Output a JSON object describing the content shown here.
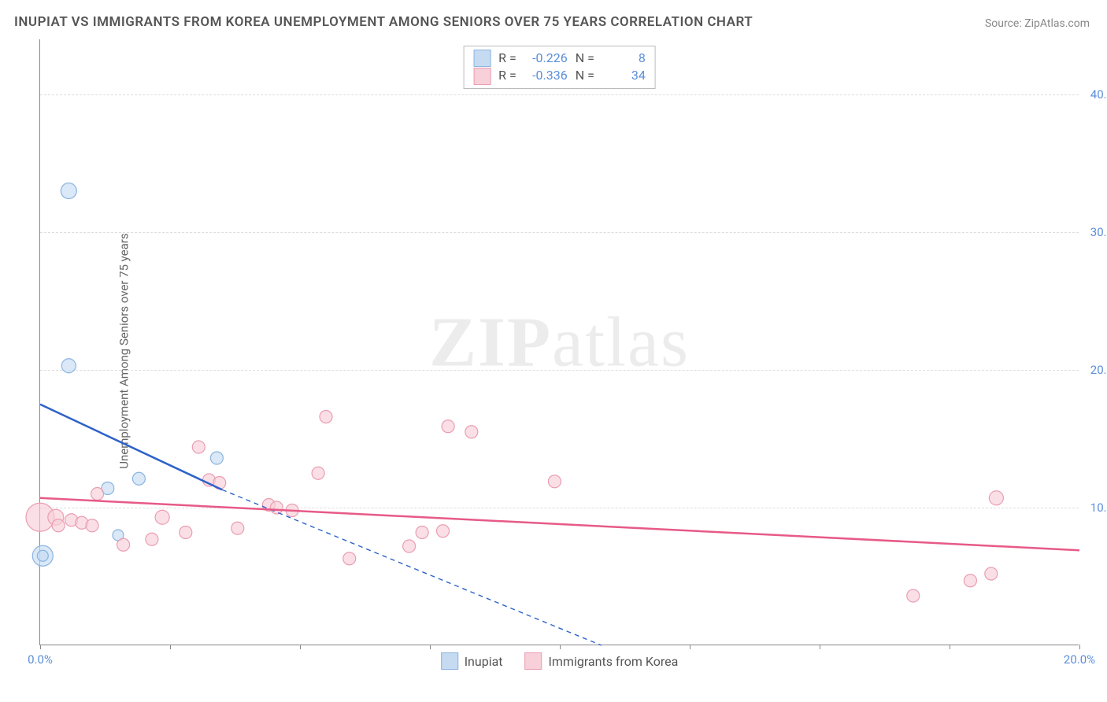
{
  "title": "INUPIAT VS IMMIGRANTS FROM KOREA UNEMPLOYMENT AMONG SENIORS OVER 75 YEARS CORRELATION CHART",
  "source": "Source: ZipAtlas.com",
  "ylabel": "Unemployment Among Seniors over 75 years",
  "watermark_bold": "ZIP",
  "watermark_light": "atlas",
  "chart": {
    "type": "scatter",
    "xlim": [
      0,
      20
    ],
    "ylim": [
      0,
      44
    ],
    "x_ticks": [
      0,
      2.5,
      5,
      7.5,
      10,
      12.5,
      15,
      17.5,
      20
    ],
    "x_tick_labels": {
      "0": "0.0%",
      "20": "20.0%"
    },
    "y_ticks": [
      10,
      20,
      30,
      40
    ],
    "y_tick_labels": {
      "10": "10.0%",
      "20": "20.0%",
      "30": "30.0%",
      "40": "40.0%"
    },
    "background_color": "#ffffff",
    "grid_color": "#dddddd",
    "axis_color": "#888888",
    "tick_label_color": "#5b8fd9",
    "series": [
      {
        "name": "Inupiat",
        "color_fill": "#c6dbf2",
        "color_stroke": "#8bb4e0",
        "r_value": "-0.226",
        "n_value": "8",
        "trend": {
          "solid": [
            [
              0,
              17.5
            ],
            [
              3.5,
              11.3
            ]
          ],
          "dashed": [
            [
              3.5,
              11.3
            ],
            [
              10.8,
              0
            ]
          ]
        },
        "trend_color": "#2d62c8",
        "points": [
          {
            "x": 0.55,
            "y": 33.0,
            "r": 10
          },
          {
            "x": 0.55,
            "y": 20.3,
            "r": 9
          },
          {
            "x": 3.4,
            "y": 13.6,
            "r": 8
          },
          {
            "x": 1.9,
            "y": 12.1,
            "r": 8
          },
          {
            "x": 1.3,
            "y": 11.4,
            "r": 8
          },
          {
            "x": 1.5,
            "y": 8.0,
            "r": 7
          },
          {
            "x": 0.05,
            "y": 6.5,
            "r": 13
          },
          {
            "x": 0.05,
            "y": 6.5,
            "r": 7
          }
        ]
      },
      {
        "name": "Immigrants from Korea",
        "color_fill": "#f7d0d9",
        "color_stroke": "#eb9db1",
        "r_value": "-0.336",
        "n_value": "34",
        "trend": {
          "solid": [
            [
              0,
              10.7
            ],
            [
              20,
              6.9
            ]
          ]
        },
        "trend_color": "#e75a87",
        "points": [
          {
            "x": 0.0,
            "y": 9.3,
            "r": 18
          },
          {
            "x": 0.3,
            "y": 9.3,
            "r": 10
          },
          {
            "x": 0.35,
            "y": 8.7,
            "r": 8
          },
          {
            "x": 0.6,
            "y": 9.1,
            "r": 8
          },
          {
            "x": 0.8,
            "y": 8.9,
            "r": 8
          },
          {
            "x": 1.0,
            "y": 8.7,
            "r": 8
          },
          {
            "x": 1.1,
            "y": 11.0,
            "r": 8
          },
          {
            "x": 1.6,
            "y": 7.3,
            "r": 8
          },
          {
            "x": 2.15,
            "y": 7.7,
            "r": 8
          },
          {
            "x": 2.35,
            "y": 9.3,
            "r": 9
          },
          {
            "x": 2.8,
            "y": 8.2,
            "r": 8
          },
          {
            "x": 3.05,
            "y": 14.4,
            "r": 8
          },
          {
            "x": 3.25,
            "y": 12.0,
            "r": 8
          },
          {
            "x": 3.45,
            "y": 11.8,
            "r": 8
          },
          {
            "x": 3.8,
            "y": 8.5,
            "r": 8
          },
          {
            "x": 4.4,
            "y": 10.2,
            "r": 8
          },
          {
            "x": 4.55,
            "y": 10.0,
            "r": 8
          },
          {
            "x": 4.85,
            "y": 9.8,
            "r": 8
          },
          {
            "x": 5.35,
            "y": 12.5,
            "r": 8
          },
          {
            "x": 5.5,
            "y": 16.6,
            "r": 8
          },
          {
            "x": 5.95,
            "y": 6.3,
            "r": 8
          },
          {
            "x": 7.1,
            "y": 7.2,
            "r": 8
          },
          {
            "x": 7.35,
            "y": 8.2,
            "r": 8
          },
          {
            "x": 7.75,
            "y": 8.3,
            "r": 8
          },
          {
            "x": 7.85,
            "y": 15.9,
            "r": 8
          },
          {
            "x": 8.3,
            "y": 15.5,
            "r": 8
          },
          {
            "x": 9.9,
            "y": 11.9,
            "r": 8
          },
          {
            "x": 16.8,
            "y": 3.6,
            "r": 8
          },
          {
            "x": 17.9,
            "y": 4.7,
            "r": 8
          },
          {
            "x": 18.3,
            "y": 5.2,
            "r": 8
          },
          {
            "x": 18.4,
            "y": 10.7,
            "r": 9
          }
        ]
      }
    ]
  },
  "stats_labels": {
    "r": "R =",
    "n": "N ="
  },
  "legend": {
    "inupiat": "Inupiat",
    "korea": "Immigrants from Korea"
  }
}
